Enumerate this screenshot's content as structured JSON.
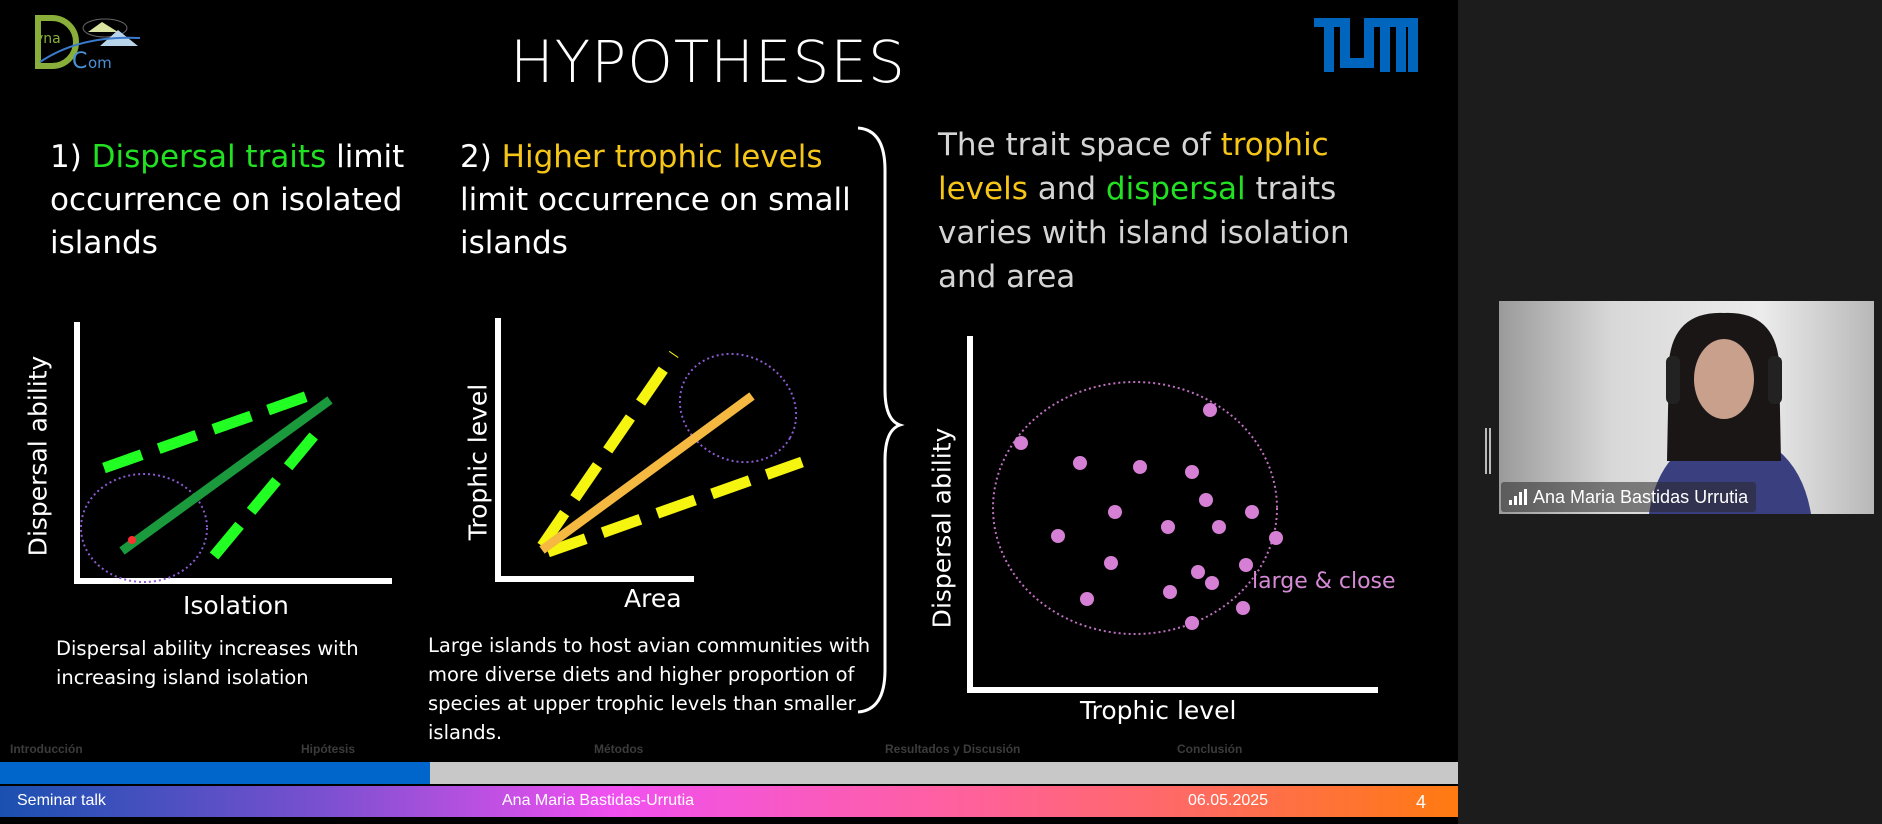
{
  "slide": {
    "title": "HYPOTHESES",
    "logo_text": "DynaCom",
    "tum_logo": "TUM",
    "h1": {
      "num": "1) ",
      "highlight": "Dispersal traits",
      "line1_rest": " limit",
      "line2": "occurrence on isolated",
      "line3": "islands"
    },
    "h2": {
      "num": "2) ",
      "highlight": "Higher trophic levels",
      "line2": "limit occurrence on small",
      "line3": "islands"
    },
    "h3": {
      "p1": "The trait space of ",
      "hl1": "trophic",
      "hl1b": "levels",
      "p2": " and ",
      "hl2": "dispersal",
      "p3": " traits",
      "line3": "varies with island isolation",
      "line4": "and area"
    },
    "graph1": {
      "ylabel": "Dispersal ability",
      "xlabel": "Isolation",
      "caption1": "Dispersal ability increases with",
      "caption2": "increasing island isolation"
    },
    "graph2": {
      "ylabel": "Trophic level",
      "xlabel": "Area",
      "caption1": "Large islands to host avian communities with",
      "caption2": "more diverse diets and higher proportion of",
      "caption3": "species at upper trophic levels than smaller",
      "caption4": "islands."
    },
    "graph3": {
      "ylabel": "Dispersal ability",
      "xlabel": "Trophic level",
      "annotation": "large & close"
    },
    "nav": [
      "Introducción",
      "Hipótesis",
      "Métodos",
      "Resultados y Discusión",
      "Conclusión"
    ],
    "progress_percent": 29.5,
    "footer": {
      "left": "Seminar talk",
      "center": "Ana Maria Bastidas-Urrutia",
      "date": "06.05.2025",
      "page": "4"
    },
    "colors": {
      "dispersal": "#22e022",
      "trophic": "#f5c518",
      "points": "#d580d5",
      "progress": "#0066cc"
    }
  },
  "video": {
    "participant_name": "Ana Maria Bastidas Urrutia",
    "signal_icon": "signal-bars-icon"
  }
}
